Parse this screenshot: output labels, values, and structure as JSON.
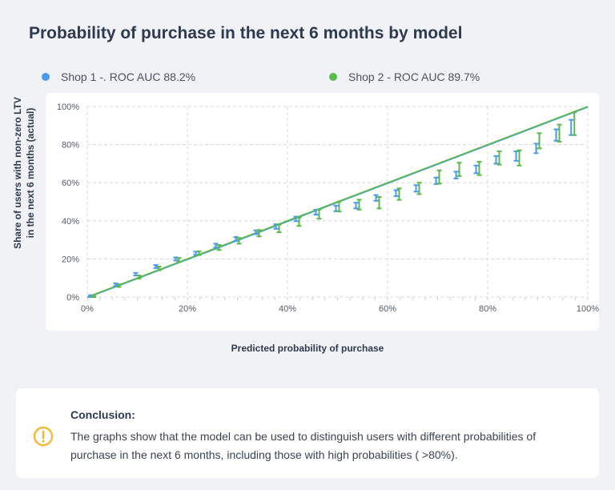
{
  "title": "Probability of purchase in the next 6 months by model",
  "legend": [
    {
      "label": "Shop 1 -.  ROC AUC 88.2%",
      "color": "#4a9af0"
    },
    {
      "label": "Shop 2 - ROC AUC 89.7%",
      "color": "#5bb94a"
    }
  ],
  "chart_data": {
    "type": "scatter",
    "title": "Probability of purchase in the next 6 months by model",
    "xlabel": "Predicted probability of purchase",
    "ylabel": "Share of users with non-zero LTV in the next 6 months (actual)",
    "ylabel_lines": [
      "Share of users with non-zero LTV",
      "in the next 6 months (actual)"
    ],
    "xlim": [
      0,
      100
    ],
    "ylim": [
      0,
      100
    ],
    "x_ticks": [
      "0%",
      "20%",
      "40%",
      "60%",
      "80%",
      "100%"
    ],
    "y_ticks": [
      "0%",
      "20%",
      "40%",
      "60%",
      "80%",
      "100%"
    ],
    "grid": true,
    "legend_position": "top",
    "reference_line": {
      "x": [
        0,
        100
      ],
      "y": [
        0,
        100
      ]
    },
    "x": [
      1,
      6,
      10,
      14,
      18,
      22,
      26,
      30,
      34,
      38,
      42,
      46,
      50,
      54,
      58,
      62,
      66,
      70,
      74,
      78,
      82,
      86,
      90,
      94,
      97
    ],
    "series": [
      {
        "name": "Shop 1 -.  ROC AUC 88.2%",
        "color": "#4a9af0",
        "values": [
          0.5,
          6.5,
          12,
          16,
          20,
          23,
          27,
          30.5,
          34,
          37,
          41,
          44.5,
          46.5,
          48,
          52,
          54.5,
          57,
          61,
          64,
          67,
          72,
          74,
          78,
          85,
          89
        ],
        "error": [
          0.5,
          0.7,
          0.7,
          0.8,
          0.8,
          0.8,
          1,
          1,
          1,
          1.2,
          1.2,
          1.3,
          1.5,
          1.5,
          1.5,
          1.6,
          1.7,
          1.7,
          1.8,
          2,
          2,
          2.5,
          2.5,
          3,
          4
        ]
      },
      {
        "name": "Shop 2 - ROC AUC 89.7%",
        "color": "#5bb94a",
        "values": [
          0.5,
          6,
          10.5,
          15,
          19.5,
          23,
          26,
          29.5,
          33.5,
          36,
          39.5,
          43.5,
          47.5,
          48.5,
          49.5,
          54,
          57,
          63,
          67,
          67.5,
          73,
          73,
          82,
          86,
          91
        ],
        "error": [
          0.5,
          0.7,
          0.8,
          1,
          1,
          1,
          1.3,
          1.5,
          1.7,
          2,
          2.2,
          2.4,
          2.6,
          2.6,
          3,
          3,
          3,
          3.5,
          3.5,
          3.5,
          3.5,
          4,
          4,
          4.5,
          6
        ]
      }
    ]
  },
  "conclusion": {
    "heading": "Conclusion:",
    "text": "The graphs show that the model can be used to distinguish users with different probabilities of purchase in the next 6 months, including those with high probabilities ( >80%).",
    "icon": "warning-circle-icon",
    "icon_color": "#f5b93a"
  }
}
